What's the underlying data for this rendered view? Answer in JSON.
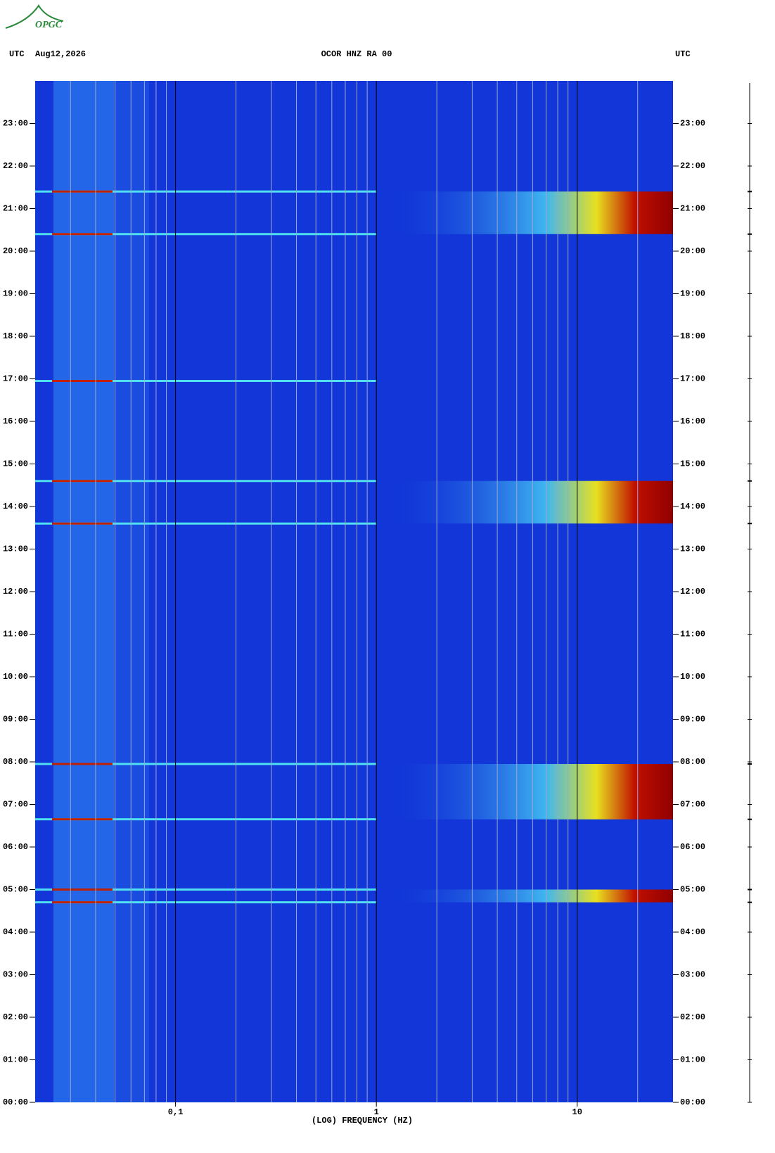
{
  "logo": "OPGC",
  "chart_data": {
    "type": "spectrogram",
    "title": "OCOR HNZ RA 00",
    "date": "Aug12,2026",
    "left_label": "UTC",
    "right_label": "UTC",
    "x_label": "(LOG) FREQUENCY (HZ)",
    "x_scale": "log",
    "xlim": [
      0.02,
      30
    ],
    "xticks": [
      {
        "value": 0.1,
        "label": "0,1"
      },
      1,
      10
    ],
    "xgrid": [
      0.03,
      0.04,
      0.05,
      0.06,
      0.07,
      0.08,
      0.09,
      0.2,
      0.3,
      0.4,
      0.5,
      0.6,
      0.7,
      0.8,
      0.9,
      2,
      3,
      4,
      5,
      6,
      7,
      8,
      9,
      20
    ],
    "ylim": [
      0,
      24
    ],
    "yticks": [
      {
        "value": 0,
        "label": "00:00"
      },
      {
        "value": 1,
        "label": "01:00"
      },
      {
        "value": 2,
        "label": "02:00"
      },
      {
        "value": 3,
        "label": "03:00"
      },
      {
        "value": 4,
        "label": "04:00"
      },
      {
        "value": 5,
        "label": "05:00"
      },
      {
        "value": 6,
        "label": "06:00"
      },
      {
        "value": 7,
        "label": "07:00"
      },
      {
        "value": 8,
        "label": "08:00"
      },
      {
        "value": 9,
        "label": "09:00"
      },
      {
        "value": 10,
        "label": "10:00"
      },
      {
        "value": 11,
        "label": "11:00"
      },
      {
        "value": 12,
        "label": "12:00"
      },
      {
        "value": 13,
        "label": "13:00"
      },
      {
        "value": 14,
        "label": "14:00"
      },
      {
        "value": 15,
        "label": "15:00"
      },
      {
        "value": 16,
        "label": "16:00"
      },
      {
        "value": 17,
        "label": "17:00"
      },
      {
        "value": 18,
        "label": "18:00"
      },
      {
        "value": 19,
        "label": "19:00"
      },
      {
        "value": 20,
        "label": "20:00"
      },
      {
        "value": 21,
        "label": "21:00"
      },
      {
        "value": 22,
        "label": "22:00"
      },
      {
        "value": 23,
        "label": "23:00"
      }
    ],
    "events": [
      {
        "start": 20.4,
        "end": 21.4
      },
      {
        "start": 13.6,
        "end": 14.6
      },
      {
        "start": 6.65,
        "end": 7.95
      },
      {
        "start": 4.7,
        "end": 5.0
      }
    ],
    "lines": [
      16.95
    ]
  }
}
